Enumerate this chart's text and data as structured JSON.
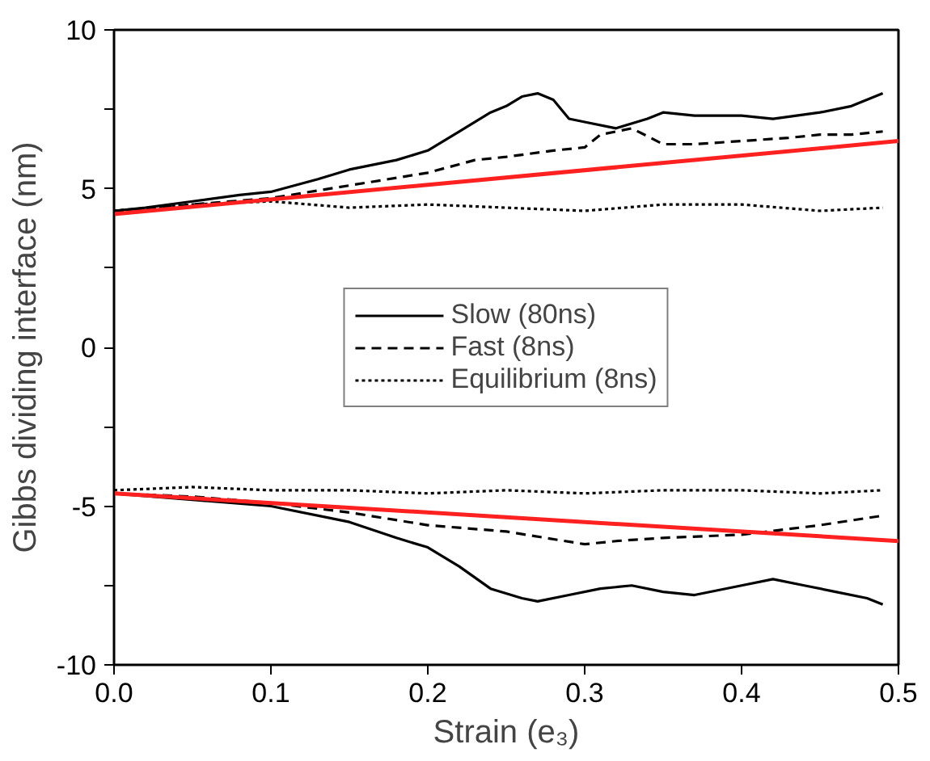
{
  "chart_data": {
    "type": "line",
    "xlabel": "Strain (e₃)",
    "ylabel": "Gibbs dividing interface (nm)",
    "xlim": [
      0,
      0.5
    ],
    "ylim": [
      -10,
      10
    ],
    "xticks": [
      "0.0",
      0.1,
      0.2,
      0.3,
      0.4,
      0.5
    ],
    "yticks": [
      -10,
      {
        "value": -7.5,
        "label": null
      },
      -5,
      {
        "value": -2.5,
        "label": null
      },
      0,
      {
        "value": 2.5,
        "label": null
      },
      5,
      {
        "value": 7.5,
        "label": null
      },
      10
    ],
    "grid": false,
    "legend": "center",
    "marker": "none",
    "series": [
      {
        "name": "Slow (80ns)",
        "color": "#000000",
        "line_style": "solid",
        "x": [
          0,
          0.02,
          0.05,
          0.08,
          0.1,
          0.13,
          0.15,
          0.18,
          0.2,
          0.22,
          0.24,
          0.25,
          0.26,
          0.27,
          0.28,
          0.29,
          0.3,
          0.32,
          0.34,
          0.35,
          0.37,
          0.4,
          0.42,
          0.45,
          0.47,
          0.49
        ],
        "values": [
          4.3,
          4.4,
          4.6,
          4.8,
          4.9,
          5.3,
          5.6,
          5.9,
          6.2,
          6.8,
          7.4,
          7.6,
          7.9,
          8.0,
          7.8,
          7.2,
          7.1,
          6.9,
          7.2,
          7.4,
          7.3,
          7.3,
          7.2,
          7.4,
          7.6,
          8.0
        ]
      },
      {
        "name": "Fast (8ns)",
        "color": "#000000",
        "line_style": "dashed",
        "x": [
          0,
          0.05,
          0.1,
          0.15,
          0.2,
          0.23,
          0.25,
          0.28,
          0.3,
          0.31,
          0.33,
          0.35,
          0.37,
          0.4,
          0.43,
          0.45,
          0.47,
          0.49
        ],
        "values": [
          4.3,
          4.5,
          4.7,
          5.1,
          5.5,
          5.9,
          6.0,
          6.2,
          6.3,
          6.7,
          6.9,
          6.4,
          6.4,
          6.5,
          6.6,
          6.7,
          6.7,
          6.8
        ]
      },
      {
        "name": "Equilibrium (8ns)",
        "color": "#000000",
        "line_style": "dotted",
        "x": [
          0,
          0.05,
          0.1,
          0.15,
          0.2,
          0.25,
          0.3,
          0.35,
          0.4,
          0.45,
          0.49
        ],
        "values": [
          4.3,
          4.5,
          4.6,
          4.4,
          4.5,
          4.4,
          4.3,
          4.5,
          4.5,
          4.3,
          4.4
        ]
      },
      {
        "color": "#000000",
        "line_style": "solid",
        "x": [
          0,
          0.05,
          0.1,
          0.15,
          0.18,
          0.2,
          0.22,
          0.24,
          0.26,
          0.27,
          0.29,
          0.31,
          0.33,
          0.35,
          0.37,
          0.4,
          0.42,
          0.44,
          0.46,
          0.48,
          0.49
        ],
        "values": [
          -4.6,
          -4.8,
          -5.0,
          -5.5,
          -6.0,
          -6.3,
          -6.9,
          -7.6,
          -7.9,
          -8.0,
          -7.8,
          -7.6,
          -7.5,
          -7.7,
          -7.8,
          -7.5,
          -7.3,
          -7.5,
          -7.7,
          -7.9,
          -8.1
        ]
      },
      {
        "color": "#000000",
        "line_style": "dashed",
        "x": [
          0,
          0.05,
          0.1,
          0.15,
          0.2,
          0.25,
          0.3,
          0.32,
          0.35,
          0.4,
          0.45,
          0.49
        ],
        "values": [
          -4.6,
          -4.7,
          -4.9,
          -5.2,
          -5.6,
          -5.8,
          -6.2,
          -6.1,
          -6.0,
          -5.9,
          -5.6,
          -5.3
        ]
      },
      {
        "color": "#000000",
        "line_style": "dotted",
        "x": [
          0,
          0.05,
          0.1,
          0.15,
          0.2,
          0.25,
          0.3,
          0.35,
          0.4,
          0.45,
          0.49
        ],
        "values": [
          -4.5,
          -4.4,
          -4.5,
          -4.5,
          -4.6,
          -4.5,
          -4.6,
          -4.5,
          -4.5,
          -4.6,
          -4.5
        ]
      },
      {
        "color": "#ff2020",
        "line_style": "solid",
        "x": [
          0,
          0.5
        ],
        "values": [
          4.2,
          6.5
        ]
      },
      {
        "color": "#ff2020",
        "line_style": "solid",
        "x": [
          0,
          0.5
        ],
        "values": [
          -4.6,
          -6.1
        ]
      }
    ]
  }
}
